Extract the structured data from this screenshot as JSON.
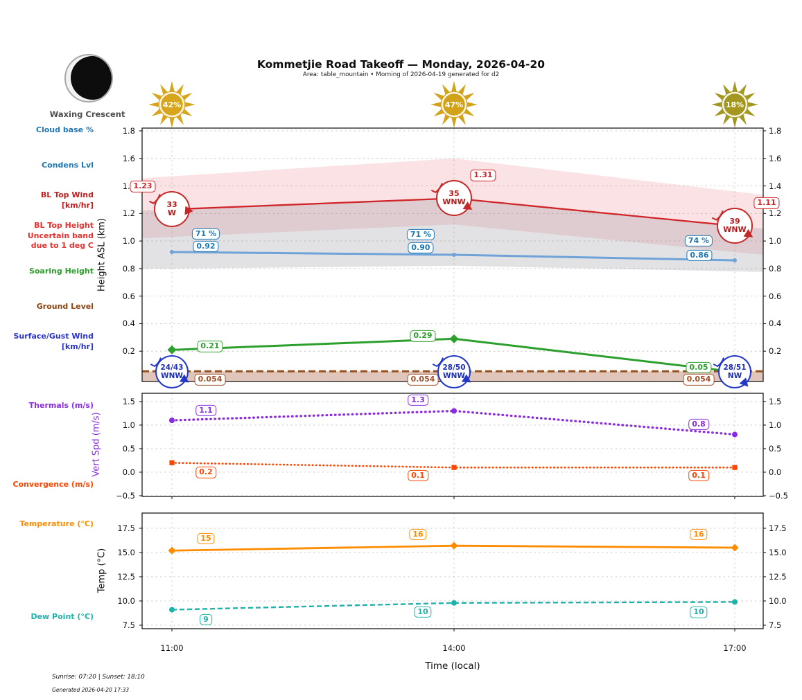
{
  "header": {
    "title": "Kommetjie Road Takeoff — Monday, 2026-04-20",
    "subtitle": "Area: table_mountain • Morning of 2026-04-19 generated for d2"
  },
  "moon": {
    "phase": "Waxing Crescent"
  },
  "suns": [
    {
      "time": "11:00",
      "pct": "42%",
      "color": "#D8A61E"
    },
    {
      "time": "14:00",
      "pct": "47%",
      "color": "#D2A318"
    },
    {
      "time": "17:00",
      "pct": "18%",
      "color": "#A4971F"
    }
  ],
  "row_labels": [
    {
      "text": "Cloud base %",
      "color": "#1f77b4"
    },
    {
      "text": "Condens Lvl",
      "color": "#1f77b4"
    },
    {
      "text": "BL Top Wind\n[km/hr]",
      "color": "#c02020"
    },
    {
      "text": "BL Top Height\nUncertain band\ndue to 1 deg C",
      "color": "#e8312e"
    },
    {
      "text": "Soaring Height",
      "color": "#2ca02c"
    },
    {
      "text": "Ground Level",
      "color": "#8b4513"
    },
    {
      "text": "Surface/Gust Wind\n[km/hr]",
      "color": "#2a35c8"
    },
    {
      "text": "Thermals (m/s)",
      "color": "#8a2be2"
    },
    {
      "text": "Convergence (m/s)",
      "color": "#ff4500"
    },
    {
      "text": "Temperature (°C)",
      "color": "#ff8c00"
    },
    {
      "text": "Dew Point (°C)",
      "color": "#20b2aa"
    }
  ],
  "axis": {
    "x_ticks": [
      "11:00",
      "14:00",
      "17:00"
    ],
    "x_label": "Time (local)"
  },
  "footer": {
    "sun_times": "Sunrise: 07:20 | Sunset: 18:10",
    "generated": "Generated 2026-04-20 17:33"
  },
  "chart_data": [
    {
      "type": "line",
      "ylabel": "Height ASL (km)",
      "ylabel_color": "#0d0d0d",
      "x": [
        "11:00",
        "14:00",
        "17:00"
      ],
      "ylim": [
        -0.02,
        1.82
      ],
      "yticks": [
        {
          "v": 0.2,
          "t": "0.2"
        },
        {
          "v": 0.4,
          "t": "0.4"
        },
        {
          "v": 0.6,
          "t": "0.6"
        },
        {
          "v": 0.8,
          "t": "0.8"
        },
        {
          "v": 1.0,
          "t": "1.0"
        },
        {
          "v": 1.2,
          "t": "1.2"
        },
        {
          "v": 1.4,
          "t": "1.4"
        },
        {
          "v": 1.6,
          "t": "1.6"
        },
        {
          "v": 1.8,
          "t": "1.8"
        }
      ],
      "series": [
        {
          "id": "bl_top",
          "name": "BL Top Height (km)",
          "color": "#cf2428",
          "values": [
            1.23,
            1.31,
            1.11
          ],
          "labels": [
            "1.23",
            "1.31",
            "1.11"
          ],
          "style": "solid",
          "marker": "none"
        },
        {
          "id": "condens",
          "name": "Condens Lvl (km)",
          "color": "#6fa3d8",
          "label_color": "#1f77b4",
          "values": [
            0.92,
            0.9,
            0.86
          ],
          "labels": [
            "0.92",
            "0.90",
            "0.86"
          ],
          "style": "solid",
          "marker": "circle"
        },
        {
          "id": "soaring",
          "name": "Soaring Height (km)",
          "color": "#2ca02c",
          "values": [
            0.21,
            0.29,
            0.05
          ],
          "labels": [
            "0.21",
            "0.29",
            "0.05"
          ],
          "style": "solid",
          "marker": "diamond"
        },
        {
          "id": "ground",
          "name": "Ground Level (km)",
          "color": "#96501e",
          "label_color": "#a0522d",
          "values": [
            0.054,
            0.054,
            0.054
          ],
          "labels": [
            "0.054",
            "0.054",
            "0.054"
          ],
          "style": "dashed",
          "marker": "none",
          "full_width": true
        }
      ],
      "cloud_base_pct": {
        "name": "Cloud base %",
        "color": "#1f77b4",
        "labels": [
          "71 %",
          "71 %",
          "74 %"
        ]
      },
      "bl_top_wind": {
        "name": "BL Top Wind [km/hr]",
        "color": "#c62828",
        "text_color": "#b71c1c",
        "points": [
          {
            "speed": "33",
            "dir": "W"
          },
          {
            "speed": "35",
            "dir": "WNW"
          },
          {
            "speed": "39",
            "dir": "WNW"
          }
        ]
      },
      "surface_wind": {
        "name": "Surface/Gust Wind [km/hr]",
        "color": "#2438c8",
        "text_color": "#1e2fb8",
        "points": [
          {
            "speed": "24/43",
            "dir": "WNW"
          },
          {
            "speed": "28/50",
            "dir": "WNW"
          },
          {
            "speed": "28/51",
            "dir": "NW"
          }
        ]
      },
      "bands": [
        {
          "name": "bl-top-uncertainty-band",
          "color": "rgba(225,60,70,0.14)",
          "top": [
            1.47,
            1.6,
            1.36
          ],
          "bottom": [
            1.03,
            1.12,
            0.92
          ]
        },
        {
          "name": "condens-uncertainty-band",
          "color": "rgba(125,125,135,0.22)",
          "top": [
            1.23,
            1.31,
            1.11
          ],
          "bottom": [
            0.8,
            0.82,
            0.78
          ]
        }
      ],
      "ground_fill": {
        "color": "rgba(160,82,45,0.33)",
        "level": 0.054
      }
    },
    {
      "type": "line",
      "ylabel": "Vert Spd (m/s)",
      "ylabel_color": "#8a2be2",
      "x": [
        "11:00",
        "14:00",
        "17:00"
      ],
      "ylim": [
        -0.515,
        1.675
      ],
      "yticks": [
        {
          "v": -0.5,
          "t": "−0.5"
        },
        {
          "v": 0.0,
          "t": "0.0"
        },
        {
          "v": 0.5,
          "t": "0.5"
        },
        {
          "v": 1.0,
          "t": "1.0"
        },
        {
          "v": 1.5,
          "t": "1.5"
        }
      ],
      "series": [
        {
          "id": "thermals",
          "name": "Thermals (m/s)",
          "color": "#8a2be2",
          "values": [
            1.1,
            1.3,
            0.8
          ],
          "labels": [
            "1.1",
            "1.3",
            "0.8"
          ],
          "style": "dotted",
          "marker": "circle"
        },
        {
          "id": "convergence",
          "name": "Convergence (m/s)",
          "color": "#ff4500",
          "values": [
            0.2,
            0.1,
            0.1
          ],
          "labels": [
            "0.2",
            "0.1",
            "0.1"
          ],
          "style": "dotted",
          "marker": "square"
        }
      ]
    },
    {
      "type": "line",
      "ylabel": "Temp (°C)",
      "ylabel_color": "#0d0d0d",
      "x": [
        "11:00",
        "14:00",
        "17:00"
      ],
      "ylim": [
        7.14,
        19.07
      ],
      "yticks": [
        {
          "v": 7.5,
          "t": "7.5"
        },
        {
          "v": 10.0,
          "t": "10.0"
        },
        {
          "v": 12.5,
          "t": "12.5"
        },
        {
          "v": 15.0,
          "t": "15.0"
        },
        {
          "v": 17.5,
          "t": "17.5"
        }
      ],
      "series": [
        {
          "id": "temperature",
          "name": "Temperature (°C)",
          "color": "#ff8c00",
          "values": [
            15.2,
            15.7,
            15.5
          ],
          "labels": [
            "15",
            "16",
            "16"
          ],
          "style": "solid",
          "marker": "diamond"
        },
        {
          "id": "dewpoint",
          "name": "Dew Point (°C)",
          "color": "#20b2aa",
          "values": [
            9.1,
            9.8,
            9.9
          ],
          "labels": [
            "9",
            "10",
            "10"
          ],
          "style": "dashed",
          "marker": "circle"
        }
      ]
    }
  ]
}
